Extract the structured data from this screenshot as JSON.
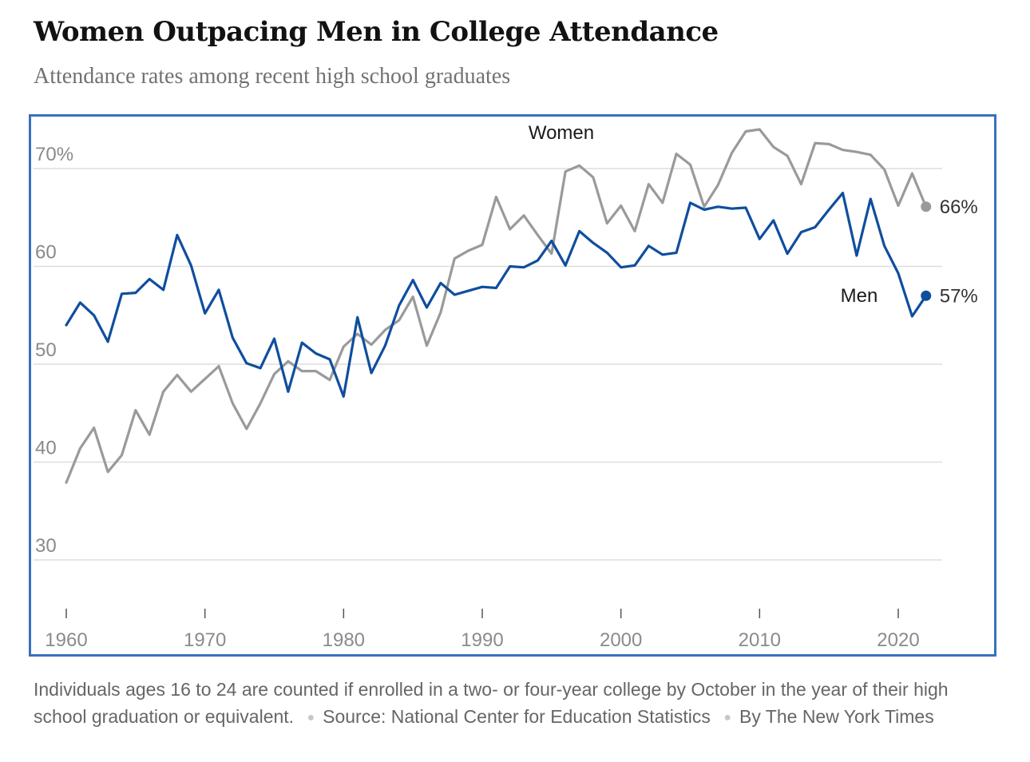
{
  "header": {
    "title": "Women Outpacing Men in College Attendance",
    "subtitle": "Attendance rates among recent high school graduates"
  },
  "footer": {
    "note": "Individuals ages 16 to 24 are counted if enrolled in a two- or four-year college by October in the year of their high school graduation or equivalent.",
    "source": "Source: National Center for Education Statistics",
    "credit": "By The New York Times"
  },
  "colors": {
    "women": "#9a9a9a",
    "men": "#0f4e9e",
    "grid": "#dddddd",
    "frame": "#3a6fbf",
    "tick_text": "#8a8a8a"
  },
  "chart_data": {
    "type": "line",
    "title": "Women Outpacing Men in College Attendance",
    "subtitle": "Attendance rates among recent high school graduates",
    "xlabel": "",
    "ylabel": "",
    "xlim": [
      1960,
      2022
    ],
    "ylim": [
      25,
      75
    ],
    "grid": "horizontal",
    "y_ticks": [
      {
        "value": 70,
        "label": "70%"
      },
      {
        "value": 60,
        "label": "60"
      },
      {
        "value": 50,
        "label": "50"
      },
      {
        "value": 40,
        "label": "40"
      },
      {
        "value": 30,
        "label": "30"
      }
    ],
    "x_ticks": [
      {
        "value": 1960,
        "label": "1960"
      },
      {
        "value": 1970,
        "label": "1970"
      },
      {
        "value": 1980,
        "label": "1980"
      },
      {
        "value": 1990,
        "label": "1990"
      },
      {
        "value": 2000,
        "label": "2000"
      },
      {
        "value": 2010,
        "label": "2010"
      },
      {
        "value": 2020,
        "label": "2020"
      }
    ],
    "x": [
      1960,
      1961,
      1962,
      1963,
      1964,
      1965,
      1966,
      1967,
      1968,
      1969,
      1970,
      1971,
      1972,
      1973,
      1974,
      1975,
      1976,
      1977,
      1978,
      1979,
      1980,
      1981,
      1982,
      1983,
      1984,
      1985,
      1986,
      1987,
      1988,
      1989,
      1990,
      1991,
      1992,
      1993,
      1994,
      1995,
      1996,
      1997,
      1998,
      1999,
      2000,
      2001,
      2002,
      2003,
      2004,
      2005,
      2006,
      2007,
      2008,
      2009,
      2010,
      2011,
      2012,
      2013,
      2014,
      2015,
      2016,
      2017,
      2018,
      2019,
      2020,
      2021,
      2022
    ],
    "series": [
      {
        "name": "Women",
        "color": "#9a9a9a",
        "end_label": "66%",
        "values": [
          37.9,
          41.4,
          43.5,
          39.0,
          40.7,
          45.3,
          42.8,
          47.2,
          48.9,
          47.2,
          48.5,
          49.8,
          46.0,
          43.4,
          46.0,
          49.0,
          50.3,
          49.3,
          49.3,
          48.4,
          51.8,
          53.1,
          52.0,
          53.5,
          54.5,
          56.9,
          51.9,
          55.3,
          60.8,
          61.6,
          62.2,
          67.1,
          63.8,
          65.2,
          63.2,
          61.3,
          69.7,
          70.3,
          69.1,
          64.4,
          66.2,
          63.6,
          68.4,
          66.5,
          71.5,
          70.4,
          66.1,
          68.3,
          71.6,
          73.8,
          74.0,
          72.2,
          71.3,
          68.4,
          72.6,
          72.5,
          71.9,
          71.7,
          71.4,
          69.9,
          66.2,
          69.5,
          66.1
        ]
      },
      {
        "name": "Men",
        "color": "#0f4e9e",
        "end_label": "57%",
        "values": [
          54.0,
          56.3,
          55.0,
          52.3,
          57.2,
          57.3,
          58.7,
          57.6,
          63.2,
          60.1,
          55.2,
          57.6,
          52.7,
          50.1,
          49.6,
          52.6,
          47.2,
          52.2,
          51.1,
          50.5,
          46.7,
          54.8,
          49.1,
          51.9,
          56.0,
          58.6,
          55.8,
          58.3,
          57.1,
          57.5,
          57.9,
          57.8,
          60.0,
          59.9,
          60.6,
          62.6,
          60.1,
          63.6,
          62.4,
          61.4,
          59.9,
          60.1,
          62.1,
          61.2,
          61.4,
          66.5,
          65.8,
          66.1,
          65.9,
          66.0,
          62.8,
          64.7,
          61.3,
          63.5,
          64.0,
          65.8,
          67.5,
          61.1,
          66.9,
          62.1,
          59.3,
          54.9,
          57.0
        ]
      }
    ],
    "annotations": [
      {
        "text": "Women",
        "series": "Women"
      },
      {
        "text": "Men",
        "series": "Men"
      }
    ]
  }
}
